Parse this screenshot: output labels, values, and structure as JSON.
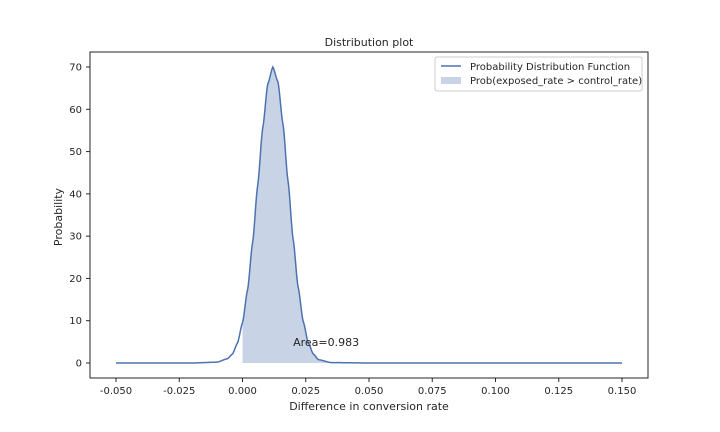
{
  "chart_data": {
    "type": "area",
    "title": "Distribution plot",
    "xlabel": "Difference in conversion rate",
    "ylabel": "Probability",
    "xlim": [
      -0.05,
      0.15
    ],
    "ylim": [
      0,
      70
    ],
    "x_ticks": [
      "-0.050",
      "-0.025",
      "0.000",
      "0.025",
      "0.050",
      "0.075",
      "0.100",
      "0.125",
      "0.150"
    ],
    "y_ticks": [
      "0",
      "10",
      "20",
      "30",
      "40",
      "50",
      "60",
      "70"
    ],
    "grid": false,
    "legend_position": "top-right",
    "series": [
      {
        "name": "Probability Distribution Function",
        "kind": "line",
        "color": "#4c72b0",
        "x": [
          -0.05,
          -0.02,
          -0.01,
          -0.006,
          -0.004,
          -0.002,
          0.0,
          0.002,
          0.004,
          0.006,
          0.008,
          0.01,
          0.012,
          0.014,
          0.016,
          0.018,
          0.02,
          0.022,
          0.024,
          0.026,
          0.028,
          0.03,
          0.035,
          0.05,
          0.1,
          0.15
        ],
        "y": [
          0,
          0,
          0.2,
          1.0,
          2.1,
          4.7,
          9.5,
          17.3,
          28.5,
          42.0,
          55.6,
          66.0,
          70.0,
          66.5,
          56.5,
          43.0,
          29.3,
          17.9,
          9.8,
          4.8,
          2.1,
          0.8,
          0.1,
          0,
          0,
          0
        ]
      },
      {
        "name": "Prob(exposed_rate > control_rate)",
        "kind": "fill",
        "color": "#c8d3e6",
        "x_from": 0.0
      }
    ],
    "annotations": [
      {
        "text": "Area=0.983",
        "x": 0.02,
        "y": 5
      }
    ]
  }
}
